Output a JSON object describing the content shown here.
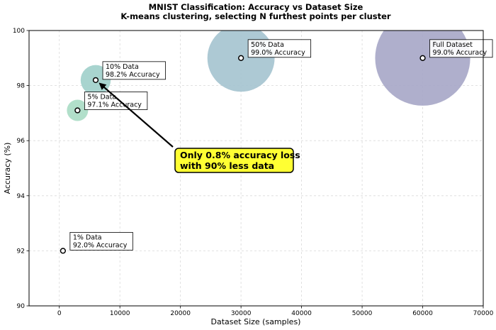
{
  "chart_data": {
    "type": "scatter",
    "title": "MNIST Classification: Accuracy vs Dataset Size",
    "subtitle": "K-means clustering, selecting N furthest points per cluster",
    "xlabel": "Dataset Size (samples)",
    "ylabel": "Accuracy (%)",
    "xlim": [
      -5000,
      70000
    ],
    "ylim": [
      90,
      100
    ],
    "grid": true,
    "x_ticks": [
      0,
      10000,
      20000,
      30000,
      40000,
      50000,
      60000,
      70000
    ],
    "x_tick_labels": [
      "0",
      "10000",
      "20000",
      "30000",
      "40000",
      "50000",
      "60000",
      "70000"
    ],
    "y_ticks": [
      90,
      92,
      94,
      96,
      98,
      100
    ],
    "y_tick_labels": [
      "90",
      "92",
      "94",
      "96",
      "98",
      "100"
    ],
    "points": [
      {
        "name": "1% Data",
        "x": 600,
        "y": 92.0,
        "label_line1": "1% Data",
        "label_line2": "92.0% Accuracy",
        "color": "#ffffff"
      },
      {
        "name": "5% Data",
        "x": 3000,
        "y": 97.1,
        "label_line1": "5% Data",
        "label_line2": "97.1% Accuracy",
        "color": "#a8dbc4"
      },
      {
        "name": "10% Data",
        "x": 6000,
        "y": 98.2,
        "label_line1": "10% Data",
        "label_line2": "98.2% Accuracy",
        "color": "#9fcfca"
      },
      {
        "name": "50% Data",
        "x": 30000,
        "y": 99.0,
        "label_line1": "50% Data",
        "label_line2": "99.0% Accuracy",
        "color": "#a4c3cf"
      },
      {
        "name": "Full Dataset",
        "x": 60000,
        "y": 99.0,
        "label_line1": "Full Dataset",
        "label_line2": "99.0% Accuracy",
        "color": "#a6a6c6"
      }
    ],
    "annotation": {
      "line1": "Only 0.8% accuracy loss",
      "line2": "with 90% less data",
      "target": "10% Data",
      "box_color": "#ffff33"
    }
  }
}
